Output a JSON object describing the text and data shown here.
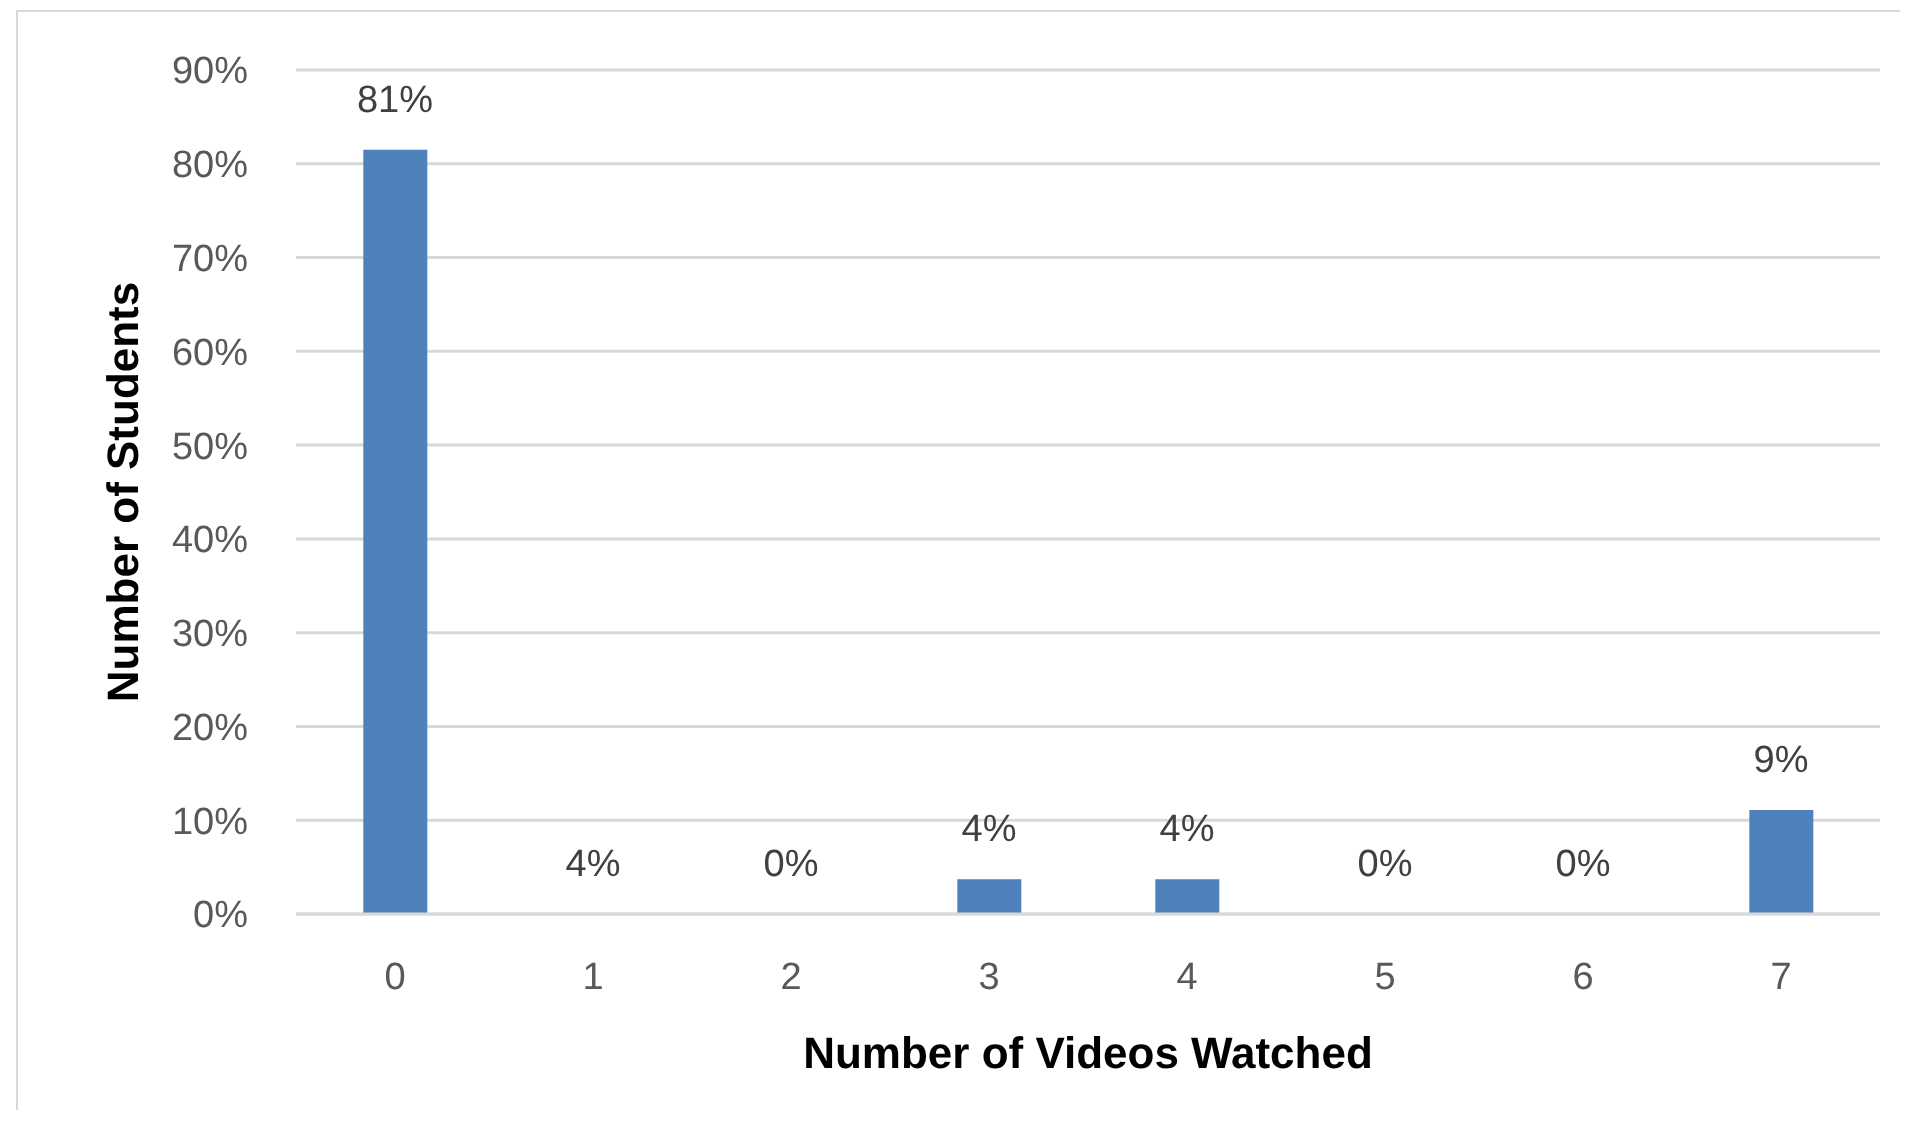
{
  "chart_data": {
    "type": "bar",
    "categories": [
      "0",
      "1",
      "2",
      "3",
      "4",
      "5",
      "6",
      "7"
    ],
    "values": [
      81.5,
      0,
      0,
      3.7,
      3.7,
      0,
      0,
      11.1
    ],
    "value_labels": [
      "81%",
      null,
      "0%",
      "4%",
      "4%",
      "0%",
      "0%",
      null
    ],
    "annotations": [
      {
        "text": "4%",
        "x": "1",
        "y": 0
      },
      {
        "text": "9%",
        "x": "7",
        "y": 11.1
      }
    ],
    "color": "#4f81bd",
    "xlabel": "Number of Videos Watched",
    "ylabel": "Number of Students",
    "ylim": [
      0,
      90
    ],
    "yticks": [
      {
        "value": 0,
        "label": "0%"
      },
      {
        "value": 10,
        "label": "10%"
      },
      {
        "value": 20,
        "label": "20%"
      },
      {
        "value": 30,
        "label": "30%"
      },
      {
        "value": 40,
        "label": "40%"
      },
      {
        "value": 50,
        "label": "50%"
      },
      {
        "value": 60,
        "label": "60%"
      },
      {
        "value": 70,
        "label": "70%"
      },
      {
        "value": 80,
        "label": "80%"
      },
      {
        "value": 90,
        "label": "90%"
      }
    ],
    "grid": "y"
  }
}
